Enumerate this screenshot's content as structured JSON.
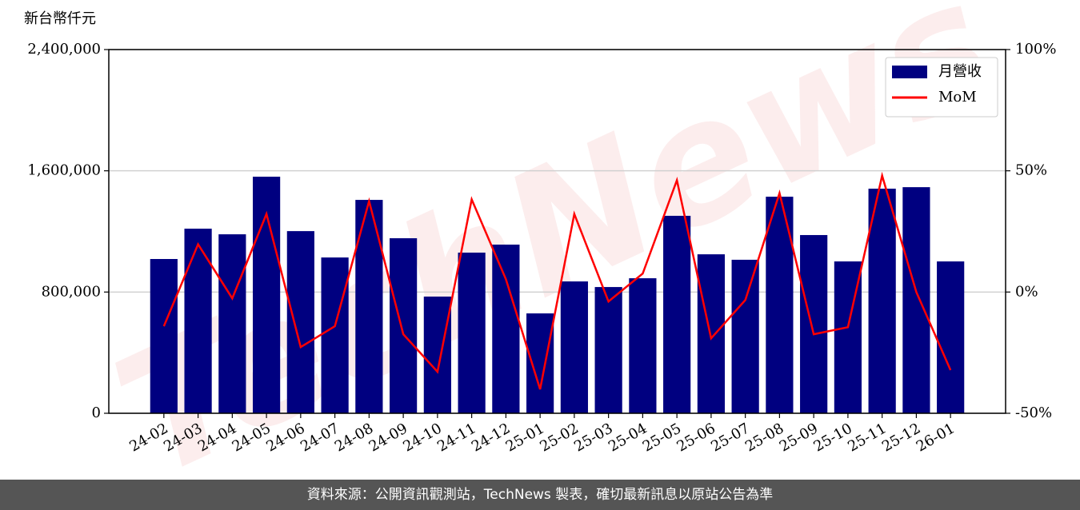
{
  "chart_data": {
    "type": "bar",
    "y_label": "新台幣仟元",
    "watermark": "TechNews",
    "footer": "資料來源：公開資訊觀測站，TechNews 製表，確切最新訊息以原站公告為準",
    "categories": [
      "24-02",
      "24-03",
      "24-04",
      "24-05",
      "24-06",
      "24-07",
      "24-08",
      "24-09",
      "24-10",
      "24-11",
      "24-12",
      "25-01",
      "25-02",
      "25-03",
      "25-04",
      "25-05",
      "25-06",
      "25-07",
      "25-08",
      "25-09",
      "25-10",
      "25-11",
      "25-12",
      "26-01"
    ],
    "series": [
      {
        "name": "月營收",
        "type": "bar",
        "color": "#000080",
        "values": [
          1018000,
          1218000,
          1181000,
          1561000,
          1202000,
          1028000,
          1408000,
          1155000,
          770000,
          1060000,
          1113000,
          659000,
          870000,
          833000,
          891000,
          1303000,
          1049000,
          1013000,
          1429000,
          1176000,
          1002000,
          1482000,
          1492000,
          1002000
        ]
      },
      {
        "name": "MoM",
        "type": "line",
        "color": "#ff0000",
        "axis": "y2",
        "values": [
          -14.1,
          19.7,
          -2.6,
          32.2,
          -22.7,
          -14.1,
          37.5,
          -17.4,
          -32.9,
          38.2,
          5.3,
          -40.1,
          32.2,
          -3.9,
          7.6,
          46.1,
          -19.1,
          -3.3,
          40.8,
          -17.4,
          -14.5,
          48.0,
          0,
          -32.2
        ]
      }
    ],
    "ylim": [
      0,
      2400000
    ],
    "yticks": [
      0,
      {
        "value": 800000,
        "label": "800,000"
      },
      {
        "value": 1600000,
        "label": "1,600,000"
      },
      {
        "value": 2400000,
        "label": "2,400,000"
      }
    ],
    "y2lim": [
      -50,
      100
    ],
    "y2ticks": [
      {
        "value": -50,
        "label": "-50%"
      },
      {
        "value": 0,
        "label": "0%"
      },
      {
        "value": 50,
        "label": "50%"
      },
      {
        "value": 100,
        "label": "100%"
      }
    ],
    "grid": true,
    "legend": "upper right"
  }
}
